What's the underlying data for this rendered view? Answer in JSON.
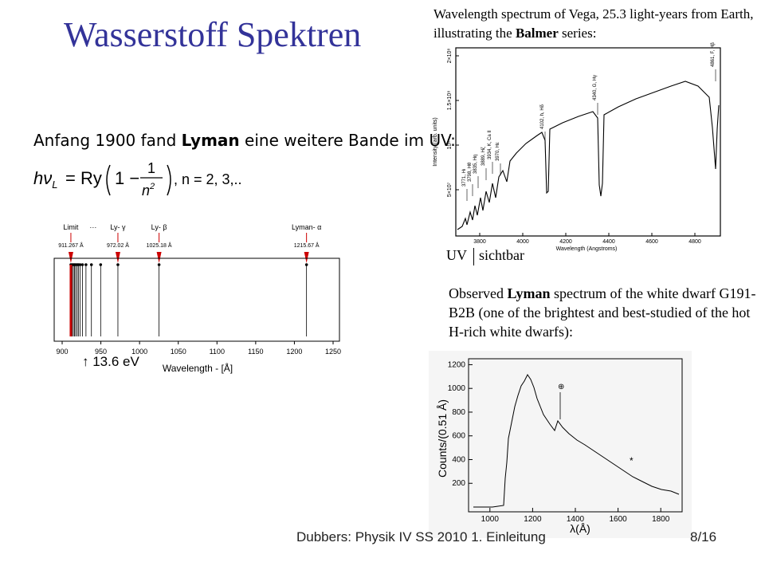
{
  "slide": {
    "title": "Wasserstoff Spektren",
    "footer": "Dubbers: Physik IV SS 2010 1. Einleitung",
    "page": "8/16"
  },
  "vega": {
    "caption_pre": "Wavelength spectrum of Vega, 25.3 light-years from Earth, illustrating the ",
    "caption_bold": "Balmer",
    "caption_post": " series:",
    "xlabel": "Wavelength (Angstroms)",
    "ylabel": "Intensity (arb. units)",
    "xticks": [
      "3800",
      "4000",
      "4200",
      "4400",
      "4600",
      "4800"
    ],
    "yticks": [
      "5×10⁷",
      "10⁸",
      "1.5×10⁸",
      "2×10⁸"
    ],
    "lines": [
      "3771, Hι",
      "3798, Hθ",
      "3835, Hη",
      "3889, Hζ",
      "3934, K, Ca II",
      "3970, Hε",
      "4102, h, Hδ",
      "4340, G, Hγ",
      "4861, F, Hβ"
    ],
    "uv_label": "UV",
    "visible_label": "sichtbar"
  },
  "lyman": {
    "intro_pre": "Anfang 1900 fand ",
    "intro_bold": "Lyman",
    "intro_post": " eine weitere Bande im UV:",
    "formula_n": ", n = 2, 3,...",
    "markers": [
      {
        "name": "Limit",
        "value": "911.267 Å",
        "x": 911.267
      },
      {
        "name": "Ly- γ",
        "value": "972.02 Å",
        "x": 972.02
      },
      {
        "name": "Ly- β",
        "value": "1025.18 Å",
        "x": 1025.18
      },
      {
        "name": "Lyman- α",
        "value": "1215.67 Å",
        "x": 1215.67
      }
    ],
    "dots_label": "···",
    "xticks": [
      "900",
      "950",
      "1000",
      "1050",
      "1100",
      "1150",
      "1200",
      "1250"
    ],
    "xlabel": "Wavelength - [Å]",
    "ev_label": "↑ 13.6 eV",
    "series_lines": [
      911.267,
      913,
      914.5,
      916,
      917.5,
      919.4,
      920.96,
      923.15,
      926.23,
      930.75,
      937.8,
      949.74,
      972.02,
      1025.18,
      1215.67
    ]
  },
  "white_dwarf": {
    "caption_pre": "Observed ",
    "caption_bold": "Lyman",
    "caption_post": " spectrum of the white dwarf G191-B2B (one of the brightest and best-studied of the hot H-rich white dwarfs):",
    "ylabel": "Counts/(0.51 Å)",
    "xlabel": "λ(Å)",
    "xticks": [
      "1000",
      "1200",
      "1400",
      "1600",
      "1800"
    ],
    "yticks": [
      "200",
      "400",
      "600",
      "800",
      "1000",
      "1200"
    ],
    "annot_theta": "⊕",
    "annot_star": "*"
  }
}
